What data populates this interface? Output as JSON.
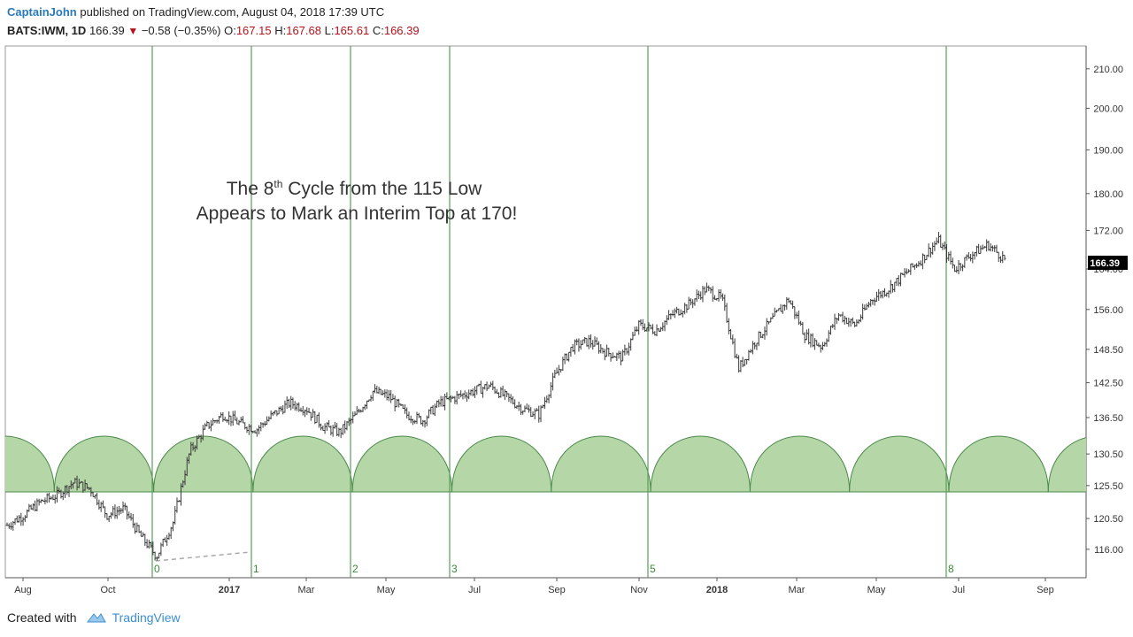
{
  "header": {
    "author": "CaptainJohn",
    "published_text": "published on TradingView.com, August 04, 2018 17:39 UTC",
    "symbol": "BATS:IWM, 1D",
    "last": "166.39",
    "change": "−0.58 (−0.35%)",
    "open_label": "O:",
    "open": "167.15",
    "high_label": "H:",
    "high": "167.68",
    "low_label": "L:",
    "low": "165.61",
    "close_label": "C:",
    "close": "166.39"
  },
  "footer": {
    "created_with": "Created with",
    "brand": "TradingView"
  },
  "colors": {
    "cycle_line": "#5a9e5a",
    "cycle_fill": "#b5d6a7",
    "cycle_stroke": "#4a8a4a",
    "bar": "#3a3a3a",
    "axis": "#555555",
    "price_label_bg": "#000000",
    "negative": "#b5121b",
    "author": "#2a7ab9"
  },
  "chart_data": {
    "type": "ohlc",
    "y_scale": "log",
    "ylim": [
      112,
      216
    ],
    "y_ticks": [
      "210.00",
      "200.00",
      "190.00",
      "180.00",
      "172.00",
      "164.00",
      "156.00",
      "148.50",
      "142.50",
      "136.50",
      "130.50",
      "125.50",
      "120.50",
      "116.00"
    ],
    "x_ticks": [
      "Aug",
      "Oct",
      "2017",
      "Mar",
      "May",
      "Jul",
      "Sep",
      "Nov",
      "2018",
      "Mar",
      "May",
      "Jul",
      "Sep"
    ],
    "last_price_label": "166.39",
    "annotation": {
      "line1_pre": "The 8",
      "line1_sup": "th",
      "line1_post": " Cycle from the 115 Low",
      "line2": "Appears to Mark an Interim Top at 170!"
    },
    "cycle_markers": [
      "0",
      "1",
      "2",
      "3",
      "5",
      "8"
    ],
    "price_path": {
      "start_date": "Aug 2016",
      "end_date": "Aug 2018",
      "approx_closes": [
        119.5,
        121,
        123,
        124,
        126,
        125,
        121,
        122,
        118,
        115,
        120,
        131,
        135,
        137,
        135.5,
        134.5,
        137,
        139,
        138,
        135,
        134,
        137,
        141,
        140,
        137,
        136,
        139,
        140,
        141,
        142,
        140,
        138,
        137,
        144,
        149,
        150,
        148,
        147,
        153,
        152,
        155,
        157,
        160,
        158,
        145,
        150,
        154,
        158,
        151,
        149,
        155,
        153,
        158,
        160,
        163,
        166,
        170,
        164,
        167,
        169,
        166
      ]
    }
  }
}
